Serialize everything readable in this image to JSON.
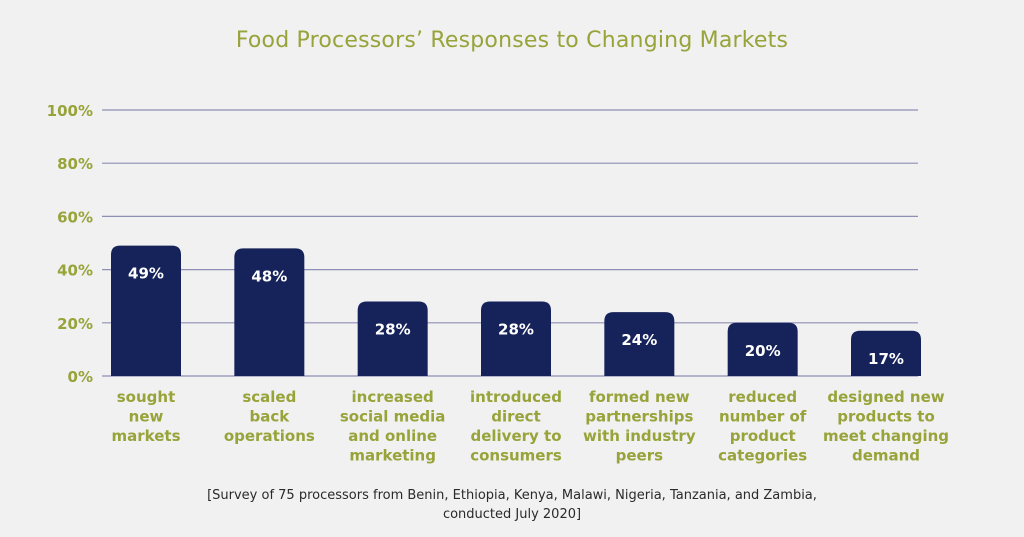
{
  "chart_data": {
    "type": "bar",
    "title": "Food Processors’ Responses to Changing Markets",
    "categories": [
      [
        "sought",
        "new",
        "markets"
      ],
      [
        "scaled",
        "back",
        "operations"
      ],
      [
        "increased",
        "social media",
        "and online",
        "marketing"
      ],
      [
        "introduced",
        "direct",
        "delivery to",
        "consumers"
      ],
      [
        "formed new",
        "partnerships",
        "with industry",
        "peers"
      ],
      [
        "reduced",
        "number of",
        "product",
        "categories"
      ],
      [
        "designed new",
        "products to",
        "meet changing",
        "demand"
      ]
    ],
    "values": [
      49,
      48,
      28,
      28,
      24,
      20,
      17
    ],
    "value_labels": [
      "49%",
      "48%",
      "28%",
      "28%",
      "24%",
      "20%",
      "17%"
    ],
    "ylim": [
      0,
      100
    ],
    "yticks": [
      0,
      20,
      40,
      60,
      80,
      100
    ],
    "ytick_labels": [
      "0%",
      "20%",
      "40%",
      "60%",
      "80%",
      "100%"
    ],
    "grid": true,
    "legend": "none",
    "bar_color": "#16235a",
    "label_color": "#98a33a"
  },
  "footnote": {
    "line1": "[Survey of 75 processors from Benin, Ethiopia, Kenya, Malawi, Nigeria, Tanzania, and Zambia,",
    "line2": "conducted July 2020]"
  }
}
